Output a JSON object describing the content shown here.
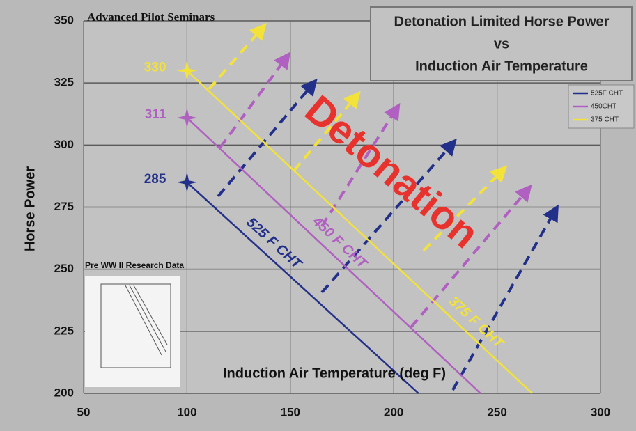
{
  "chart_data": {
    "type": "line",
    "watermark": "Advanced Pilot Seminars",
    "title": [
      "Detonation Limited Horse Power",
      "vs",
      "Induction Air Temperature"
    ],
    "x_label": "Induction Air Temperature (deg F)",
    "y_label": "Horse Power",
    "zone_label": "Detonation",
    "inset_label": "Pre WW II Research Data",
    "series": [
      {
        "name": "525F CHT",
        "line_label": "525 F CHT",
        "color": "#23308a",
        "x": [
          100,
          212
        ],
        "values": [
          285,
          200
        ],
        "value_labels": [
          "285",
          null
        ]
      },
      {
        "name": "450CHT",
        "line_label": "450 F CHT",
        "color": "#b060c0",
        "x": [
          100,
          242
        ],
        "values": [
          311,
          200
        ],
        "value_labels": [
          "311",
          null
        ]
      },
      {
        "name": "375 CHT",
        "line_label": "375 F CHT",
        "color": "#f2e23a",
        "x": [
          100,
          267
        ],
        "values": [
          330,
          200
        ],
        "value_labels": [
          "330",
          null
        ]
      }
    ],
    "xlim": [
      50,
      300
    ],
    "xticks": [
      50,
      100,
      150,
      200,
      250,
      300
    ],
    "ylim": [
      200,
      350
    ],
    "yticks": [
      200,
      225,
      250,
      275,
      300,
      325,
      350
    ],
    "grid": true
  }
}
